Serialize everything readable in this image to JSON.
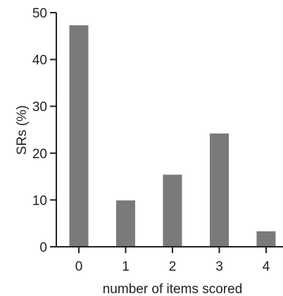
{
  "chart_data": {
    "type": "bar",
    "categories": [
      "0",
      "1",
      "2",
      "3",
      "4"
    ],
    "values": [
      47.3,
      9.9,
      15.4,
      24.2,
      3.3
    ],
    "title": "",
    "xlabel": "number of items scored",
    "ylabel": "SRs (%)",
    "ylim": [
      0,
      50
    ],
    "yticks": [
      "0",
      "10",
      "20",
      "30",
      "40",
      "50"
    ],
    "grid": false,
    "bar_color": "#7a7a7c",
    "axis_color": "#222222"
  }
}
